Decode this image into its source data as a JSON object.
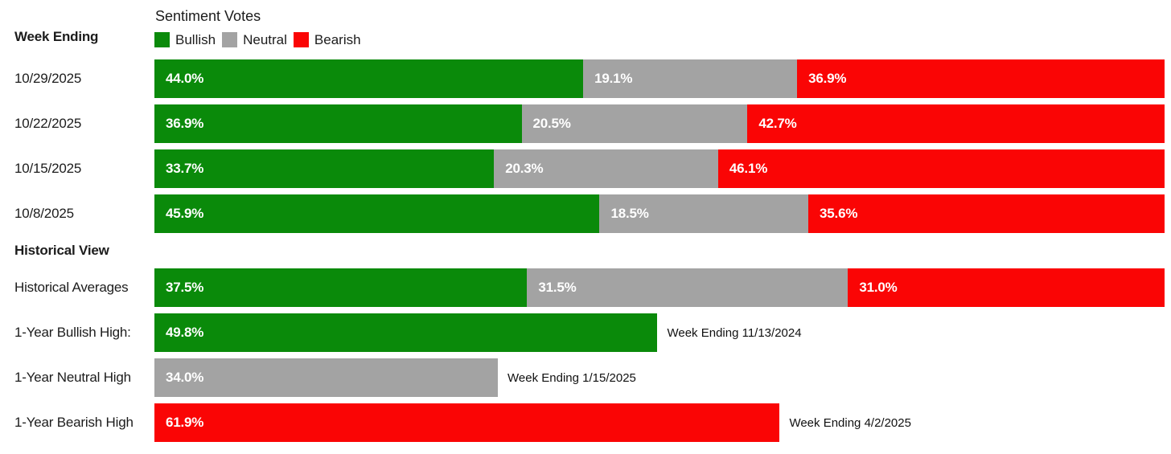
{
  "header": {
    "week_ending_label": "Week Ending"
  },
  "historical_view": {
    "heading": "Historical View"
  },
  "colors": {
    "bullish": "#0a8a0a",
    "neutral": "#a3a3a3",
    "bearish": "#fa0505",
    "bar_value_text": "#ffffff",
    "text": "#1c1c1c"
  },
  "chart_data": {
    "type": "bar",
    "orientation": "horizontal",
    "stacked": true,
    "unit": "%",
    "title": "Sentiment Votes",
    "legend_position": "top",
    "xlim": [
      0,
      100
    ],
    "grid": false,
    "categories": [
      "10/29/2025",
      "10/22/2025",
      "10/15/2025",
      "10/8/2025"
    ],
    "series": [
      {
        "name": "Bullish",
        "values": [
          44.0,
          36.9,
          33.7,
          45.9
        ]
      },
      {
        "name": "Neutral",
        "values": [
          19.1,
          20.5,
          20.3,
          18.5
        ]
      },
      {
        "name": "Bearish",
        "values": [
          36.9,
          42.7,
          46.1,
          35.6
        ]
      }
    ],
    "historical_averages": {
      "label": "Historical Averages",
      "values": [
        37.5,
        31.5,
        31.0
      ]
    },
    "one_year_highs": [
      {
        "label": "1-Year Bullish High:",
        "series": "Bullish",
        "value": 49.8,
        "annotation": "Week Ending 11/13/2024"
      },
      {
        "label": "1-Year Neutral High",
        "series": "Neutral",
        "value": 34.0,
        "annotation": "Week Ending 1/15/2025"
      },
      {
        "label": "1-Year Bearish High",
        "series": "Bearish",
        "value": 61.9,
        "annotation": "Week Ending 4/2/2025"
      }
    ]
  }
}
